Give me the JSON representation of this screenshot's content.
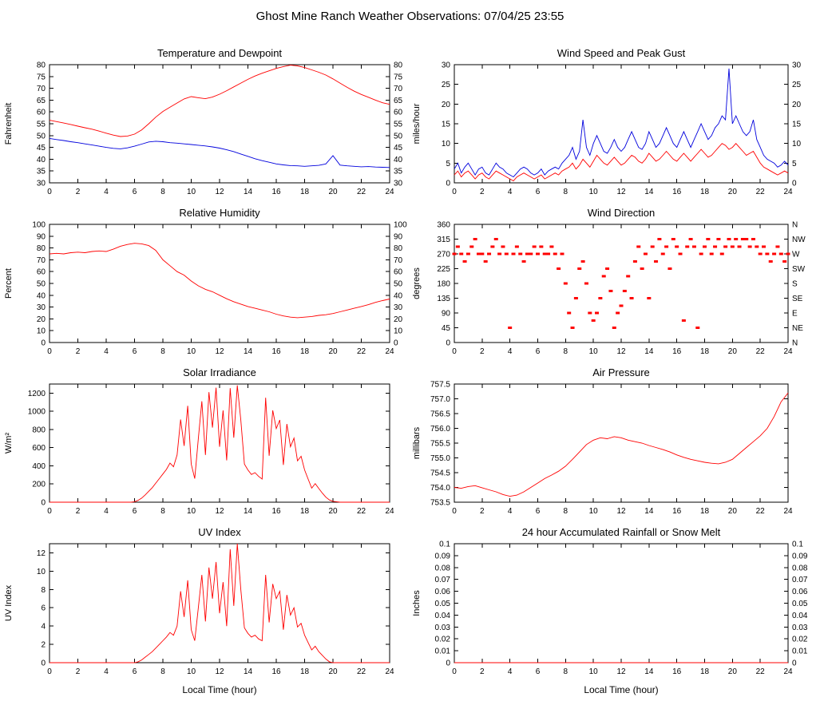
{
  "page_title": "Ghost Mine Ranch Weather Observations: 07/04/25 23:55",
  "xlabel": "Local Time (hour)",
  "colors": {
    "red": "#ff0000",
    "blue": "#0000dd",
    "frame": "#000000"
  },
  "chart_data": [
    {
      "type": "line",
      "title": "Temperature and Dewpoint",
      "ylabel": "Fahrenheit",
      "xlim": [
        0,
        24
      ],
      "xtick_step": 2,
      "ylim": [
        30,
        80
      ],
      "ytick_step": 5,
      "yfmt": "int",
      "right_labels": "same",
      "series": [
        {
          "name": "Temperature",
          "color": "#ff0000",
          "x0": 0,
          "dx": 0.5,
          "y": [
            56.5,
            55.9,
            55.3,
            54.7,
            54.0,
            53.3,
            52.7,
            51.9,
            51.0,
            50.2,
            49.6,
            49.8,
            50.6,
            52.4,
            55.0,
            57.8,
            60.2,
            62.0,
            63.8,
            65.5,
            66.5,
            66.0,
            65.6,
            66.3,
            67.5,
            69.0,
            70.6,
            72.2,
            73.8,
            75.2,
            76.4,
            77.4,
            78.4,
            79.2,
            79.8,
            79.5,
            78.8,
            77.8,
            76.8,
            75.6,
            74.0,
            72.2,
            70.4,
            68.8,
            67.4,
            66.2,
            65.0,
            63.9,
            63.2
          ]
        },
        {
          "name": "Dewpoint",
          "color": "#0000dd",
          "x0": 0,
          "dx": 0.5,
          "y": [
            48.8,
            48.3,
            47.9,
            47.4,
            47.0,
            46.5,
            46.0,
            45.5,
            45.0,
            44.6,
            44.4,
            44.8,
            45.5,
            46.4,
            47.3,
            47.6,
            47.4,
            47.0,
            46.8,
            46.5,
            46.2,
            45.9,
            45.6,
            45.2,
            44.7,
            44.0,
            43.2,
            42.2,
            41.2,
            40.2,
            39.4,
            38.7,
            38.0,
            37.6,
            37.3,
            37.2,
            37.0,
            37.2,
            37.4,
            38.0,
            41.5,
            37.5,
            37.2,
            37.0,
            36.8,
            36.9,
            36.7,
            36.6,
            36.5
          ]
        }
      ]
    },
    {
      "type": "line",
      "title": "Wind Speed and Peak Gust",
      "ylabel": "miles/hour",
      "xlim": [
        0,
        24
      ],
      "xtick_step": 2,
      "ylim": [
        0,
        30
      ],
      "ytick_step": 5,
      "yfmt": "int",
      "right_labels": "same",
      "series": [
        {
          "name": "Peak Gust",
          "color": "#0000dd",
          "x0": 0,
          "dx": 0.25,
          "y": [
            3.5,
            5,
            2.5,
            4,
            5,
            3.5,
            2,
            3.5,
            4,
            2.5,
            2,
            3.5,
            5,
            4,
            3.5,
            2.5,
            2,
            1.5,
            2.5,
            3.5,
            4,
            3.5,
            2.5,
            2,
            2.5,
            3.5,
            2,
            3,
            3.5,
            4,
            3.5,
            5,
            6,
            7,
            9,
            6,
            8,
            16,
            9,
            7,
            10,
            12,
            10,
            8,
            7.5,
            9,
            11,
            9,
            8,
            9,
            11,
            13,
            11,
            9,
            8.5,
            10,
            13,
            11,
            9,
            10,
            12,
            14,
            12,
            10,
            9,
            11,
            13,
            11,
            9,
            11,
            13,
            15,
            13,
            11,
            12,
            14,
            15,
            17,
            16,
            29,
            15,
            17,
            15,
            13,
            12,
            13,
            16,
            11,
            9,
            7,
            6,
            5.5,
            5,
            4,
            4.5,
            5.5,
            4.5
          ]
        },
        {
          "name": "Wind Speed",
          "color": "#ff0000",
          "x0": 0,
          "dx": 0.25,
          "y": [
            2,
            3,
            1.5,
            2.5,
            3,
            2,
            1,
            2,
            2.5,
            1.5,
            1,
            2,
            3,
            2.5,
            2,
            1.5,
            1,
            0.5,
            1.5,
            2,
            2.5,
            2,
            1.5,
            1,
            1.5,
            2,
            1,
            1.5,
            2,
            2.5,
            2,
            3,
            3.5,
            4,
            5,
            3.5,
            4.5,
            6,
            5,
            4,
            5.5,
            7,
            6,
            5,
            4.5,
            5.5,
            6.5,
            5.5,
            4.5,
            5,
            6,
            7,
            6.5,
            5.5,
            5,
            6,
            7.5,
            6.5,
            5.5,
            6,
            7,
            8,
            7,
            6,
            5.5,
            6.5,
            7.5,
            6.5,
            5.5,
            6.5,
            7.5,
            8.5,
            7.5,
            6.5,
            7,
            8,
            9,
            10,
            9.5,
            8.5,
            9,
            10,
            9,
            8,
            7,
            7.5,
            8,
            6.5,
            5,
            4,
            3.5,
            3,
            2.5,
            2,
            2.5,
            3,
            2.5
          ]
        }
      ]
    },
    {
      "type": "line",
      "title": "Relative Humidity",
      "ylabel": "Percent",
      "xlim": [
        0,
        24
      ],
      "xtick_step": 2,
      "ylim": [
        0,
        100
      ],
      "ytick_step": 10,
      "yfmt": "int",
      "right_labels": "same",
      "series": [
        {
          "name": "Relative Humidity",
          "color": "#ff0000",
          "x0": 0,
          "dx": 0.5,
          "y": [
            75,
            75.5,
            75,
            76,
            76.5,
            76,
            77,
            77.5,
            77,
            79,
            81.5,
            83,
            84,
            83.5,
            82,
            78,
            70,
            65,
            60,
            57,
            52,
            48,
            45,
            43,
            40,
            37,
            34.5,
            32.5,
            30.5,
            29,
            27.5,
            26,
            24,
            22.5,
            21.5,
            21,
            21.5,
            22,
            23,
            23.5,
            24.5,
            26,
            27.5,
            29,
            30.5,
            32,
            34,
            35.5,
            36.8
          ]
        }
      ]
    },
    {
      "type": "scatter",
      "title": "Wind Direction",
      "ylabel": "degrees",
      "xlim": [
        0,
        24
      ],
      "xtick_step": 2,
      "ylim": [
        0,
        360
      ],
      "ytick_step": 45,
      "yfmt": "int",
      "right_labels": "compass",
      "compass_labels": [
        "N",
        "NE",
        "E",
        "SE",
        "S",
        "SW",
        "W",
        "NW",
        "N"
      ],
      "color": "#ff0000",
      "points": [
        [
          0,
          270
        ],
        [
          0.25,
          292
        ],
        [
          0.5,
          270
        ],
        [
          0.75,
          247
        ],
        [
          1,
          270
        ],
        [
          1.25,
          292
        ],
        [
          1.5,
          315
        ],
        [
          1.75,
          270
        ],
        [
          2,
          270
        ],
        [
          2.25,
          247
        ],
        [
          2.5,
          270
        ],
        [
          2.75,
          292
        ],
        [
          3,
          315
        ],
        [
          3.25,
          270
        ],
        [
          3.5,
          292
        ],
        [
          3.75,
          270
        ],
        [
          4,
          45
        ],
        [
          4.25,
          270
        ],
        [
          4.5,
          292
        ],
        [
          4.75,
          270
        ],
        [
          5,
          247
        ],
        [
          5.25,
          270
        ],
        [
          5.5,
          270
        ],
        [
          5.75,
          292
        ],
        [
          6,
          270
        ],
        [
          6.25,
          292
        ],
        [
          6.5,
          270
        ],
        [
          6.75,
          270
        ],
        [
          7,
          292
        ],
        [
          7.25,
          270
        ],
        [
          7.5,
          225
        ],
        [
          7.75,
          270
        ],
        [
          8,
          180
        ],
        [
          8.25,
          90
        ],
        [
          8.5,
          45
        ],
        [
          8.75,
          135
        ],
        [
          9,
          225
        ],
        [
          9.25,
          247
        ],
        [
          9.5,
          180
        ],
        [
          9.75,
          90
        ],
        [
          10,
          67
        ],
        [
          10.25,
          90
        ],
        [
          10.5,
          135
        ],
        [
          10.75,
          202
        ],
        [
          11,
          225
        ],
        [
          11.25,
          157
        ],
        [
          11.5,
          45
        ],
        [
          11.75,
          90
        ],
        [
          12,
          112
        ],
        [
          12.25,
          157
        ],
        [
          12.5,
          202
        ],
        [
          12.75,
          135
        ],
        [
          13,
          247
        ],
        [
          13.25,
          292
        ],
        [
          13.5,
          225
        ],
        [
          13.75,
          270
        ],
        [
          14,
          135
        ],
        [
          14.25,
          292
        ],
        [
          14.5,
          247
        ],
        [
          14.75,
          315
        ],
        [
          15,
          270
        ],
        [
          15.25,
          292
        ],
        [
          15.5,
          225
        ],
        [
          15.75,
          315
        ],
        [
          16,
          292
        ],
        [
          16.25,
          270
        ],
        [
          16.5,
          67
        ],
        [
          16.75,
          292
        ],
        [
          17,
          315
        ],
        [
          17.25,
          292
        ],
        [
          17.5,
          45
        ],
        [
          17.75,
          270
        ],
        [
          18,
          292
        ],
        [
          18.25,
          315
        ],
        [
          18.5,
          270
        ],
        [
          18.75,
          292
        ],
        [
          19,
          315
        ],
        [
          19.25,
          270
        ],
        [
          19.5,
          292
        ],
        [
          19.75,
          315
        ],
        [
          20,
          292
        ],
        [
          20.25,
          315
        ],
        [
          20.5,
          292
        ],
        [
          20.75,
          315
        ],
        [
          21,
          315
        ],
        [
          21.25,
          292
        ],
        [
          21.5,
          315
        ],
        [
          21.75,
          292
        ],
        [
          22,
          270
        ],
        [
          22.25,
          292
        ],
        [
          22.5,
          270
        ],
        [
          22.75,
          247
        ],
        [
          23,
          270
        ],
        [
          23.25,
          292
        ],
        [
          23.5,
          270
        ],
        [
          23.75,
          247
        ],
        [
          24,
          270
        ]
      ]
    },
    {
      "type": "line",
      "title": "Solar Irradiance",
      "ylabel": "W/m²",
      "xlim": [
        0,
        24
      ],
      "xtick_step": 2,
      "ylim": [
        0,
        1300
      ],
      "ytick_step": 200,
      "ytick_max": 1200,
      "yfmt": "int",
      "right_labels": "none",
      "series": [
        {
          "name": "Solar Irradiance",
          "color": "#ff0000",
          "x0": 0,
          "dx": 0.25,
          "y": [
            0,
            0,
            0,
            0,
            0,
            0,
            0,
            0,
            0,
            0,
            0,
            0,
            0,
            0,
            0,
            0,
            0,
            0,
            0,
            0,
            0,
            0,
            0,
            0,
            5,
            20,
            45,
            80,
            120,
            160,
            210,
            260,
            310,
            360,
            430,
            390,
            520,
            910,
            620,
            1060,
            420,
            260,
            700,
            1110,
            520,
            1210,
            820,
            1260,
            610,
            1010,
            460,
            1255,
            710,
            1285,
            905,
            420,
            355,
            305,
            325,
            285,
            255,
            1150,
            510,
            1010,
            810,
            905,
            410,
            860,
            610,
            705,
            455,
            505,
            355,
            255,
            155,
            205,
            150,
            100,
            55,
            25,
            10,
            5,
            0,
            0,
            0,
            0,
            0,
            0,
            0,
            0,
            0,
            0,
            0,
            0,
            0,
            0,
            0
          ]
        }
      ]
    },
    {
      "type": "line",
      "title": "Air Pressure",
      "ylabel": "millibars",
      "xlim": [
        0,
        24
      ],
      "xtick_step": 2,
      "ylim": [
        753.5,
        757.5
      ],
      "ytick_step": 0.5,
      "yfmt": "f1",
      "right_labels": "none",
      "series": [
        {
          "name": "Air Pressure",
          "color": "#ff0000",
          "x0": 0,
          "dx": 0.5,
          "y": [
            754.0,
            753.97,
            754.03,
            754.06,
            753.99,
            753.92,
            753.85,
            753.76,
            753.7,
            753.74,
            753.85,
            754.0,
            754.15,
            754.3,
            754.42,
            754.55,
            754.72,
            754.95,
            755.2,
            755.45,
            755.6,
            755.68,
            755.65,
            755.72,
            755.68,
            755.6,
            755.55,
            755.5,
            755.42,
            755.35,
            755.28,
            755.2,
            755.1,
            755.02,
            754.95,
            754.9,
            754.85,
            754.82,
            754.8,
            754.85,
            754.95,
            755.15,
            755.35,
            755.55,
            755.75,
            756.0,
            756.4,
            756.9,
            757.2
          ]
        }
      ]
    },
    {
      "type": "line",
      "title": "UV Index",
      "ylabel": "UV Index",
      "xlim": [
        0,
        24
      ],
      "xtick_step": 2,
      "ylim": [
        0,
        13
      ],
      "ytick_step": 2,
      "ytick_max": 12,
      "yfmt": "int",
      "right_labels": "none",
      "series": [
        {
          "name": "UV Index",
          "color": "#ff0000",
          "x0": 0,
          "dx": 0.25,
          "y": [
            0,
            0,
            0,
            0,
            0,
            0,
            0,
            0,
            0,
            0,
            0,
            0,
            0,
            0,
            0,
            0,
            0,
            0,
            0,
            0,
            0,
            0,
            0,
            0,
            0,
            0.1,
            0.3,
            0.6,
            0.9,
            1.2,
            1.6,
            2.0,
            2.4,
            2.8,
            3.3,
            3.0,
            4.0,
            7.8,
            5.0,
            9.0,
            3.6,
            2.4,
            6.0,
            9.6,
            4.5,
            10.4,
            7.0,
            11.0,
            5.4,
            8.8,
            4.0,
            12.4,
            6.2,
            13.0,
            8.0,
            3.8,
            3.2,
            2.8,
            3.0,
            2.6,
            2.4,
            9.6,
            4.4,
            8.6,
            7.0,
            7.8,
            3.6,
            7.4,
            5.2,
            6.0,
            3.9,
            4.3,
            3.0,
            2.2,
            1.4,
            1.8,
            1.2,
            0.8,
            0.4,
            0.1,
            0,
            0,
            0,
            0,
            0,
            0,
            0,
            0,
            0,
            0,
            0,
            0,
            0,
            0,
            0,
            0,
            0
          ]
        }
      ]
    },
    {
      "type": "line",
      "title": "24 hour Accumulated Rainfall or Snow Melt",
      "ylabel": "Inches",
      "xlim": [
        0,
        24
      ],
      "xtick_step": 2,
      "ylim": [
        0,
        0.1
      ],
      "ytick_step": 0.01,
      "yfmt": "trim2",
      "right_labels": "same",
      "series": [
        {
          "name": "Accumulated Rainfall",
          "color": "#ff0000",
          "x0": 0,
          "dx": 1,
          "y": [
            0,
            0,
            0,
            0,
            0,
            0,
            0,
            0,
            0,
            0,
            0,
            0,
            0,
            0,
            0,
            0,
            0,
            0,
            0,
            0,
            0,
            0,
            0,
            0,
            0
          ]
        }
      ]
    }
  ]
}
